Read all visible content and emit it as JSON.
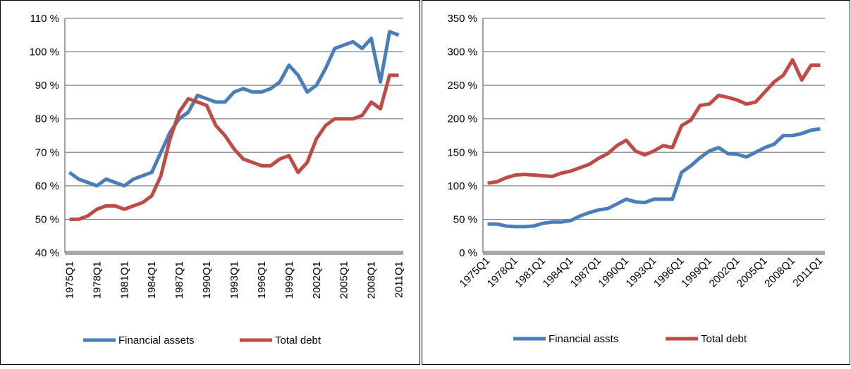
{
  "chart_data": [
    {
      "type": "line",
      "categories": [
        "1975Q1",
        null,
        null,
        "1978Q1",
        null,
        null,
        "1981Q1",
        null,
        null,
        "1984Q1",
        null,
        null,
        "1987Q1",
        null,
        null,
        "1990Q1",
        null,
        null,
        "1993Q1",
        null,
        null,
        "1996Q1",
        null,
        null,
        "1999Q1",
        null,
        null,
        "2002Q1",
        null,
        null,
        "2005Q1",
        null,
        null,
        "2008Q1",
        null,
        null,
        "2011Q1"
      ],
      "series": [
        {
          "name": "Financial assets",
          "color": "#4a7ebb",
          "values": [
            64,
            62,
            61,
            60,
            62,
            61,
            60,
            62,
            63,
            64,
            70,
            76,
            80,
            82,
            87,
            86,
            85,
            85,
            88,
            89,
            88,
            88,
            89,
            91,
            96,
            93,
            88,
            90,
            95,
            101,
            102,
            103,
            101,
            104,
            91,
            106,
            105
          ]
        },
        {
          "name": "Total debt",
          "color": "#be4b48",
          "values": [
            50,
            50,
            51,
            53,
            54,
            54,
            53,
            54,
            55,
            57,
            63,
            74,
            82,
            86,
            85,
            84,
            78,
            75,
            71,
            68,
            67,
            66,
            66,
            68,
            69,
            64,
            67,
            74,
            78,
            80,
            80,
            80,
            81,
            85,
            83,
            93,
            93
          ]
        }
      ],
      "ylim": [
        40,
        110
      ],
      "yticks": [
        {
          "value": 40,
          "label": "40 %"
        },
        {
          "value": 50,
          "label": "50 %"
        },
        {
          "value": 60,
          "label": "60 %"
        },
        {
          "value": 70,
          "label": "70 %"
        },
        {
          "value": 80,
          "label": "80 %"
        },
        {
          "value": 90,
          "label": "90 %"
        },
        {
          "value": 100,
          "label": "100 %"
        },
        {
          "value": 110,
          "label": "110 %"
        }
      ],
      "grid": true
    },
    {
      "type": "line",
      "categories": [
        "1975Q1",
        null,
        null,
        "1978Q1",
        null,
        null,
        "1981Q1",
        null,
        null,
        "1984Q1",
        null,
        null,
        "1987Q1",
        null,
        null,
        "1990Q1",
        null,
        null,
        "1993Q1",
        null,
        null,
        "1996Q1",
        null,
        null,
        "1999Q1",
        null,
        null,
        "2002Q1",
        null,
        null,
        "2005Q1",
        null,
        null,
        "2008Q1",
        null,
        null,
        "2011Q1"
      ],
      "series": [
        {
          "name": "Financial assts",
          "color": "#4a7ebb",
          "values": [
            43,
            43,
            40,
            39,
            39,
            40,
            44,
            46,
            46,
            48,
            55,
            60,
            64,
            66,
            73,
            80,
            76,
            75,
            80,
            80,
            80,
            120,
            130,
            142,
            152,
            157,
            148,
            147,
            143,
            150,
            157,
            162,
            175,
            175,
            178,
            183,
            185
          ]
        },
        {
          "name": "Total debt",
          "color": "#be4b48",
          "values": [
            104,
            106,
            112,
            116,
            117,
            116,
            115,
            114,
            119,
            122,
            127,
            132,
            141,
            148,
            160,
            168,
            152,
            146,
            152,
            160,
            157,
            190,
            198,
            220,
            222,
            235,
            232,
            228,
            222,
            225,
            240,
            255,
            265,
            288,
            258,
            280,
            280
          ]
        }
      ],
      "ylim": [
        0,
        350
      ],
      "yticks": [
        {
          "value": 0,
          "label": "0 %"
        },
        {
          "value": 50,
          "label": "50 %"
        },
        {
          "value": 100,
          "label": "100 %"
        },
        {
          "value": 150,
          "label": "150 %"
        },
        {
          "value": 200,
          "label": "200 %"
        },
        {
          "value": 250,
          "label": "250 %"
        },
        {
          "value": 300,
          "label": "300 %"
        },
        {
          "value": 350,
          "label": "350 %"
        }
      ],
      "grid": true
    }
  ]
}
